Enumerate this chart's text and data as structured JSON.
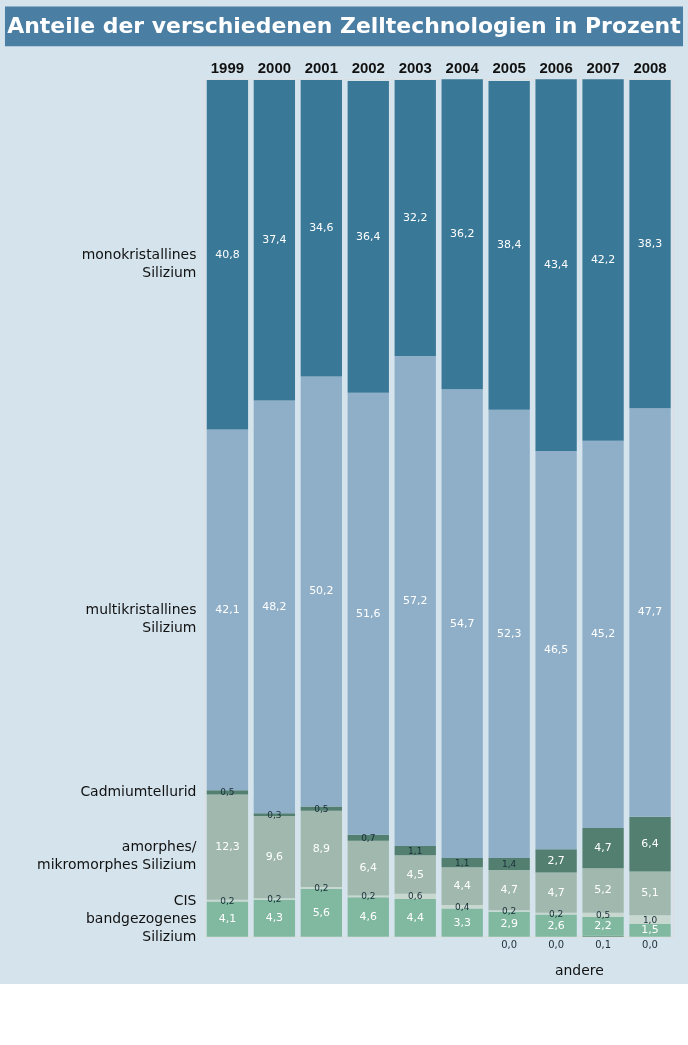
{
  "chart_data": {
    "type": "bar",
    "stacked": true,
    "title": "Anteile der verschiedenen Zelltechnologien in Prozent",
    "categories": [
      "1999",
      "2000",
      "2001",
      "2002",
      "2003",
      "2004",
      "2005",
      "2006",
      "2007",
      "2008"
    ],
    "legend": "left",
    "series": [
      {
        "name": "andere",
        "color": "#5e8f7a",
        "values": [
          null,
          null,
          null,
          null,
          null,
          null,
          0.0,
          0.0,
          0.1,
          0.0
        ],
        "value_labels": [
          null,
          null,
          null,
          null,
          null,
          null,
          "0,0",
          "0,0",
          "0,1",
          "0,0"
        ]
      },
      {
        "name": "bandgezogenes\nSilizium",
        "color": "#80b8a0",
        "values": [
          4.1,
          4.3,
          5.6,
          4.6,
          4.4,
          3.3,
          2.9,
          2.6,
          2.2,
          1.5
        ],
        "value_labels": [
          "4,1",
          "4,3",
          "5,6",
          "4,6",
          "4,4",
          "3,3",
          "2,9",
          "2,6",
          "2,2",
          "1,5"
        ]
      },
      {
        "name": "CIS",
        "color": "#c8d8d0",
        "values": [
          0.2,
          0.2,
          0.2,
          0.2,
          0.6,
          0.4,
          0.2,
          0.2,
          0.5,
          1.0
        ],
        "value_labels": [
          "0,2",
          "0,2",
          "0,2",
          "0,2",
          "0,6",
          "0,4",
          "0,2",
          "0,2",
          "0,5",
          "1,0"
        ]
      },
      {
        "name": "amorphes/\nmikromorphes Silizium",
        "color": "#a0b8ad",
        "values": [
          12.3,
          9.6,
          8.9,
          6.4,
          4.5,
          4.4,
          4.7,
          4.7,
          5.2,
          5.1
        ],
        "value_labels": [
          "12,3",
          "9,6",
          "8,9",
          "6,4",
          "4,5",
          "4,4",
          "4,7",
          "4,7",
          "5,2",
          "5,1"
        ]
      },
      {
        "name": "Cadmiumtellurid",
        "color": "#527f70",
        "values": [
          0.5,
          0.3,
          0.5,
          0.7,
          1.1,
          1.1,
          1.4,
          2.7,
          4.7,
          6.4
        ],
        "value_labels": [
          "0,5",
          "0,3",
          "0,5",
          "0,7",
          "1,1",
          "1,1",
          "1,4",
          "2,7",
          "4,7",
          "6,4"
        ]
      },
      {
        "name": "multikristallines\nSilizium",
        "color": "#8fafc8",
        "values": [
          42.1,
          48.2,
          50.2,
          51.6,
          57.2,
          54.7,
          52.3,
          46.5,
          45.2,
          47.7
        ],
        "value_labels": [
          "42,1",
          "48,2",
          "50,2",
          "51,6",
          "57,2",
          "54,7",
          "52,3",
          "46,5",
          "45,2",
          "47,7"
        ]
      },
      {
        "name": "monokristallines\nSilizium",
        "color": "#3a7898",
        "values": [
          40.8,
          37.4,
          34.6,
          36.4,
          32.2,
          36.2,
          38.4,
          43.4,
          42.2,
          38.3
        ],
        "value_labels": [
          "40,8",
          "37,4",
          "34,6",
          "36,4",
          "32,2",
          "36,2",
          "38,4",
          "43,4",
          "42,2",
          "38,3"
        ]
      }
    ]
  }
}
